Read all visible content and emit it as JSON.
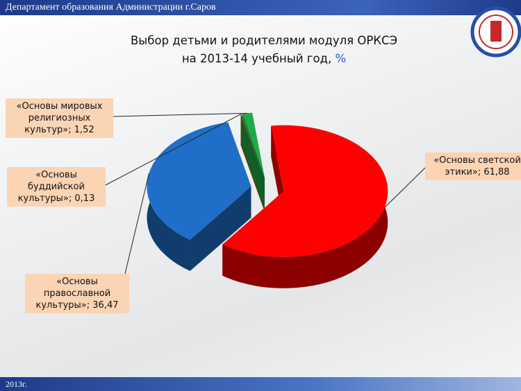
{
  "header": "Департамент образования Администрации г.Саров",
  "footer": "2013г.",
  "chart_data": {
    "type": "pie",
    "title": "Выбор детьми и родителями модуля ОРКСЭ",
    "subtitle": "на 2013-14 учебный год, ",
    "unit": "%",
    "categories": [
      "«Основы светской этики»",
      "«Основы православной культуры»",
      "«Основы буддийской культуры»",
      "«Основы мировых религиозных культур»"
    ],
    "values": [
      61.88,
      36.47,
      0.13,
      1.52
    ],
    "value_labels": [
      "61,88",
      "36,47",
      "0,13",
      "1,52"
    ],
    "label_separator": "; ",
    "colors": [
      "#ff0000",
      "#1f6fc8",
      "#80801c",
      "#1faa4a"
    ]
  }
}
